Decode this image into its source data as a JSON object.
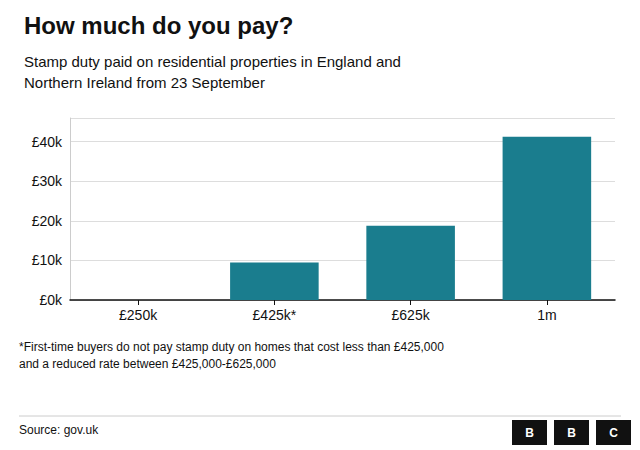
{
  "chart_data": {
    "type": "bar",
    "title": "How much do you pay?",
    "subtitle": "Stamp duty paid on residential properties in England and\nNorthern Ireland from 23 September",
    "categories": [
      "£250k",
      "£425k*",
      "£625k",
      "1m"
    ],
    "values": [
      0,
      9500,
      18750,
      41250
    ],
    "color": "#1a7d8e",
    "ylim": [
      0,
      46000
    ],
    "yticks": [
      {
        "value": 0,
        "label": "£0k"
      },
      {
        "value": 10000,
        "label": "£10k"
      },
      {
        "value": 20000,
        "label": "£20k"
      },
      {
        "value": 30000,
        "label": "£30k"
      },
      {
        "value": 40000,
        "label": "£40k"
      }
    ],
    "grid": true,
    "footnote": "*First-time buyers do not pay stamp duty on homes that cost less than £425,000\nand a reduced rate between £425,000-£625,000",
    "source": "Source: gov.uk",
    "annotations": [
      "B",
      "B",
      "C"
    ]
  }
}
